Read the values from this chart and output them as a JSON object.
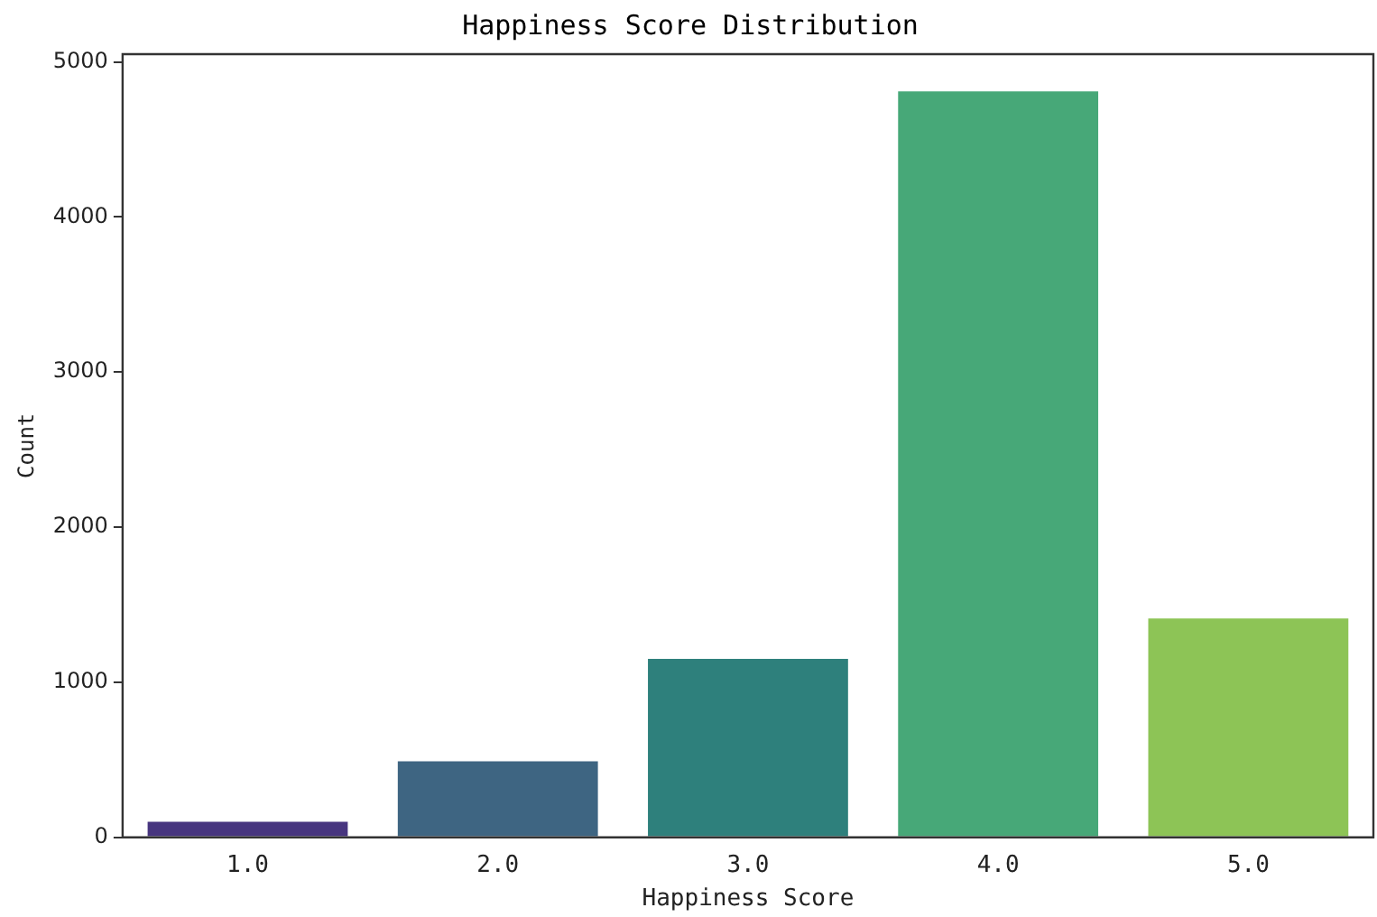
{
  "chart_data": {
    "type": "bar",
    "title": "Happiness Score Distribution",
    "xlabel": "Happiness Score",
    "ylabel": "Count",
    "categories": [
      "1.0",
      "2.0",
      "3.0",
      "4.0",
      "5.0"
    ],
    "values": [
      100,
      490,
      1150,
      4810,
      1410
    ],
    "colors": [
      "#47357f",
      "#3e6582",
      "#2e807c",
      "#47a878",
      "#8dc456"
    ],
    "ylim": [
      0,
      5050
    ],
    "yticks": [
      0,
      1000,
      2000,
      3000,
      4000,
      5000
    ],
    "grid": false,
    "legend": false
  }
}
